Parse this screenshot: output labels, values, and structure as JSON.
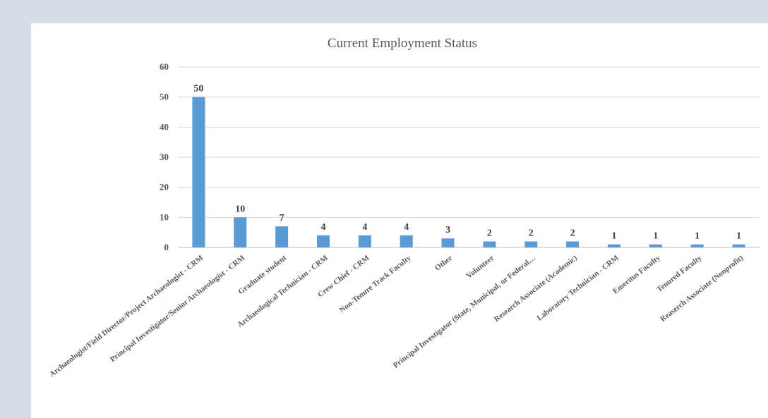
{
  "chart_data": {
    "type": "bar",
    "title": "Current Employment Status",
    "xlabel": "",
    "ylabel": "",
    "ylim": [
      0,
      60
    ],
    "yticks": [
      0,
      10,
      20,
      30,
      40,
      50,
      60
    ],
    "grid": true,
    "legend": "none",
    "bar_color": "#5b9bd5",
    "categories": [
      "Archaeologist/Field Director/Project Archaeologist - CRM",
      "Principal Investigator/Senior Archaeologist - CRM",
      "Graduate student",
      "Archaeological Technician - CRM",
      "Crew Chief - CRM",
      "Non-Tenure Track Faculty",
      "Other",
      "Volunteer",
      "Principal Investigator (State, Municipal, or Federal…",
      "Research Associate (Academic)",
      "Laboratory Technician - CRM",
      "Emeritus Faculty",
      "Tenured Faculty",
      "Reaserch Associate (Nonprofit)"
    ],
    "values": [
      50,
      10,
      7,
      4,
      4,
      4,
      3,
      2,
      2,
      2,
      1,
      1,
      1,
      1
    ]
  }
}
